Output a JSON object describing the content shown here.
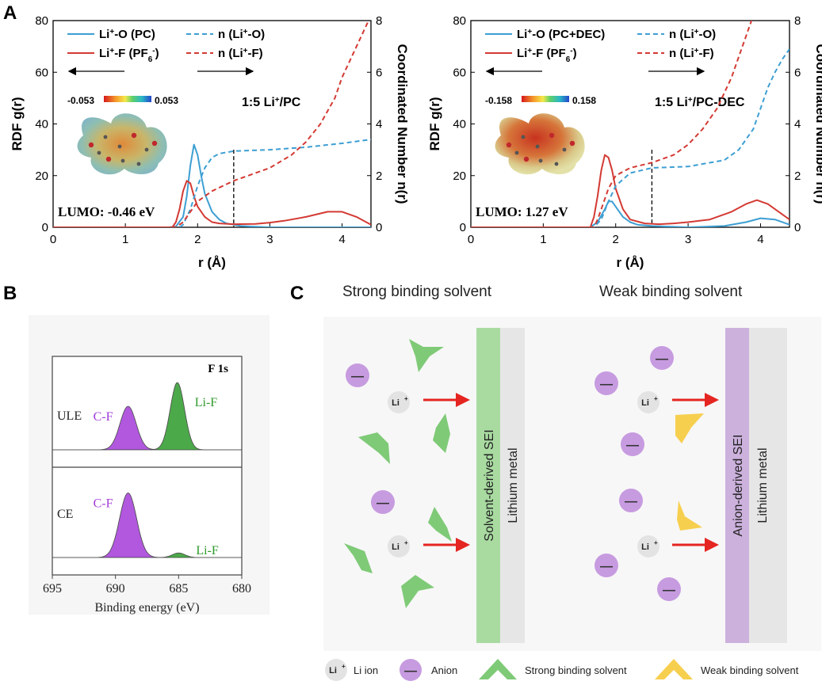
{
  "panels": {
    "A": "A",
    "B": "B",
    "C": "C"
  },
  "colors": {
    "blue": "#3d9fd3",
    "red": "#d33a33",
    "green_film": "#a9dba1",
    "purple_film": "#ccb1dd",
    "metal": "#e6e6e6",
    "anion": "#c79be0",
    "strong_solvent": "#7fca77",
    "weak_solvent": "#f7cf4f",
    "arrow": "#e52521"
  },
  "chart_data": [
    {
      "type": "line",
      "panel": "A-left",
      "xlabel": "r (Å)",
      "ylabel": "RDF g(r)",
      "ylabel_right": "Coordinated Number n(r)",
      "xlim": [
        0,
        4.4
      ],
      "ylim": [
        0,
        80
      ],
      "ylim_right": [
        0,
        8
      ],
      "x_ticks": [
        "0",
        "1",
        "2",
        "3",
        "4"
      ],
      "y_ticks": [
        "0",
        "20",
        "40",
        "60",
        "80"
      ],
      "y_ticks_right": [
        "0",
        "2",
        "4",
        "6",
        "8"
      ],
      "legend": {
        "l1_a": "Li",
        "l1_sup": "+",
        "l1_b": "-O (PC)",
        "l2_a": "Li",
        "l2_sup": "+",
        "l2_b": "-F (PF",
        "l2_sub": "6",
        "l2_sup2": "-",
        "l2_c": ")",
        "r1_a": "n (Li",
        "r1_sup": "+",
        "r1_b": "-O)",
        "r2_a": "n (Li",
        "r2_sup": "+",
        "r2_b": "-F)"
      },
      "annotation_a": "1:5 Li",
      "annotation_sup": "+",
      "annotation_b": "/PC",
      "esp_min": "-0.053",
      "esp_max": "0.053",
      "lumo": "LUMO: -0.46 eV",
      "marker_x": 2.5,
      "series": [
        {
          "name": "Li+-O (PC)",
          "axis": "left",
          "style": "solid",
          "color": "#3d9fd3",
          "x": [
            0,
            1.6,
            1.7,
            1.8,
            1.85,
            1.9,
            1.95,
            2.0,
            2.05,
            2.1,
            2.2,
            2.3,
            2.4,
            2.5,
            2.6,
            2.8,
            3.0,
            3.5,
            4.0,
            4.4
          ],
          "y": [
            0,
            0,
            0.3,
            4,
            12,
            24,
            32,
            28,
            20,
            13,
            6,
            3,
            1.5,
            1,
            0.5,
            0.2,
            0,
            0,
            0,
            0
          ]
        },
        {
          "name": "Li+-F (PF6-)",
          "axis": "left",
          "style": "solid",
          "color": "#d33a33",
          "x": [
            0,
            1.65,
            1.7,
            1.75,
            1.8,
            1.85,
            1.9,
            1.95,
            2.0,
            2.1,
            2.2,
            2.3,
            2.5,
            2.8,
            3.0,
            3.2,
            3.5,
            3.8,
            4.0,
            4.2,
            4.4
          ],
          "y": [
            0,
            0,
            2,
            7,
            14,
            18,
            17,
            12,
            8,
            4,
            2,
            1.5,
            1.2,
            1.3,
            1.8,
            2.5,
            4,
            6,
            6,
            4,
            1
          ]
        },
        {
          "name": "n (Li+-O)",
          "axis": "right",
          "style": "dashed",
          "color": "#3d9fd3",
          "x": [
            0,
            1.75,
            1.8,
            1.9,
            2.0,
            2.1,
            2.2,
            2.3,
            2.5,
            3.0,
            3.5,
            4.0,
            4.4
          ],
          "y": [
            0,
            0,
            0.1,
            0.7,
            1.6,
            2.3,
            2.7,
            2.85,
            2.95,
            3.0,
            3.1,
            3.25,
            3.4
          ]
        },
        {
          "name": "n (Li+-F)",
          "axis": "right",
          "style": "dashed",
          "color": "#d33a33",
          "x": [
            0,
            1.7,
            1.8,
            1.9,
            2.0,
            2.2,
            2.5,
            3.0,
            3.3,
            3.5,
            3.7,
            3.9,
            4.0,
            4.2,
            4.4
          ],
          "y": [
            0,
            0,
            0.2,
            0.6,
            1.0,
            1.4,
            1.8,
            2.3,
            2.8,
            3.3,
            4.0,
            5.0,
            5.8,
            7.0,
            8.2
          ]
        }
      ]
    },
    {
      "type": "line",
      "panel": "A-right",
      "xlabel": "r (Å)",
      "ylabel": "RDF g(r)",
      "ylabel_right": "Coordinated Number n(r)",
      "xlim": [
        0,
        4.4
      ],
      "ylim": [
        0,
        80
      ],
      "ylim_right": [
        0,
        8
      ],
      "x_ticks": [
        "0",
        "1",
        "2",
        "3",
        "4"
      ],
      "y_ticks": [
        "0",
        "20",
        "40",
        "60",
        "80"
      ],
      "y_ticks_right": [
        "0",
        "2",
        "4",
        "6",
        "8"
      ],
      "legend": {
        "l1_a": "Li",
        "l1_sup": "+",
        "l1_b": "-O (PC+DEC)",
        "l2_a": "Li",
        "l2_sup": "+",
        "l2_b": "-F (PF",
        "l2_sub": "6",
        "l2_sup2": "-",
        "l2_c": ")",
        "r1_a": "n (Li",
        "r1_sup": "+",
        "r1_b": "-O)",
        "r2_a": "n (Li",
        "r2_sup": "+",
        "r2_b": "-F)"
      },
      "annotation_a": "1:5 Li",
      "annotation_sup": "+",
      "annotation_b": "/PC-DEC",
      "esp_min": "-0.158",
      "esp_max": "0.158",
      "lumo": "LUMO: 1.27 eV",
      "marker_x": 2.5,
      "series": [
        {
          "name": "Li+-O (PC+DEC)",
          "axis": "left",
          "style": "solid",
          "color": "#3d9fd3",
          "x": [
            0,
            1.65,
            1.75,
            1.85,
            1.9,
            1.95,
            2.0,
            2.1,
            2.2,
            2.3,
            2.5,
            3.0,
            3.5,
            3.8,
            4.0,
            4.2,
            4.4
          ],
          "y": [
            0,
            0,
            2,
            7,
            10,
            10,
            8,
            4,
            2,
            1,
            0.5,
            0,
            0.5,
            2,
            3.5,
            3,
            1
          ]
        },
        {
          "name": "Li+-F (PF6-)",
          "axis": "left",
          "style": "solid",
          "color": "#d33a33",
          "x": [
            0,
            1.65,
            1.7,
            1.75,
            1.8,
            1.85,
            1.9,
            1.95,
            2.0,
            2.1,
            2.2,
            2.4,
            2.6,
            2.8,
            3.0,
            3.3,
            3.6,
            3.8,
            3.95,
            4.1,
            4.3,
            4.4
          ],
          "y": [
            0,
            0,
            4,
            12,
            22,
            28,
            27,
            22,
            15,
            7,
            3,
            1.5,
            1.2,
            1.5,
            2,
            3,
            6,
            9,
            10.5,
            9,
            5,
            3
          ]
        },
        {
          "name": "n (Li+-O)",
          "axis": "right",
          "style": "dashed",
          "color": "#3d9fd3",
          "x": [
            0,
            1.7,
            1.8,
            1.9,
            2.0,
            2.2,
            2.5,
            3.0,
            3.5,
            3.7,
            3.9,
            4.0,
            4.1,
            4.2,
            4.3,
            4.4
          ],
          "y": [
            0,
            0,
            0.3,
            1.0,
            1.6,
            2.1,
            2.3,
            2.35,
            2.6,
            3.0,
            3.8,
            4.6,
            5.4,
            6.0,
            6.5,
            6.9
          ]
        },
        {
          "name": "n (Li+-F)",
          "axis": "right",
          "style": "dashed",
          "color": "#d33a33",
          "x": [
            0,
            1.7,
            1.75,
            1.8,
            1.9,
            2.0,
            2.2,
            2.5,
            2.8,
            3.0,
            3.2,
            3.4,
            3.6,
            3.7,
            3.8,
            3.9
          ],
          "y": [
            0,
            0,
            0.3,
            0.7,
            1.5,
            2.0,
            2.3,
            2.5,
            2.8,
            3.2,
            3.8,
            4.6,
            5.8,
            6.6,
            7.4,
            8.2
          ]
        }
      ]
    },
    {
      "type": "area",
      "panel": "B",
      "title": "F 1s",
      "xlabel": "Binding energy (eV)",
      "xlim": [
        695,
        680
      ],
      "x_ticks": [
        "695",
        "690",
        "685",
        "680"
      ],
      "reversed_x": true,
      "subplots": [
        {
          "name": "ULE",
          "peaks": [
            {
              "label": "C-F",
              "center": 689.0,
              "height": 0.55,
              "width": 0.9,
              "color": "#a33bd9"
            },
            {
              "label": "Li-F",
              "center": 685.1,
              "height": 0.85,
              "width": 0.8,
              "color": "#2d9a2a"
            }
          ]
        },
        {
          "name": "CE",
          "peaks": [
            {
              "label": "C-F",
              "center": 689.0,
              "height": 0.85,
              "width": 0.95,
              "color": "#a33bd9"
            },
            {
              "label": "Li-F",
              "center": 685.0,
              "height": 0.06,
              "width": 0.7,
              "color": "#2d9a2a"
            }
          ]
        }
      ]
    }
  ],
  "schematic": {
    "strong_title": "Strong binding solvent",
    "weak_title": "Weak binding solvent",
    "li_label": "Li",
    "li_sup": "+",
    "anion_symbol": "—",
    "solvent_sei": "Solvent-derived SEI",
    "anion_sei": "Anion-derived SEI",
    "lithium_metal": "Lithium metal",
    "legend": {
      "li_ion": "Li ion",
      "anion": "Anion",
      "strong": "Strong binding solvent",
      "weak": "Weak binding solvent"
    }
  }
}
